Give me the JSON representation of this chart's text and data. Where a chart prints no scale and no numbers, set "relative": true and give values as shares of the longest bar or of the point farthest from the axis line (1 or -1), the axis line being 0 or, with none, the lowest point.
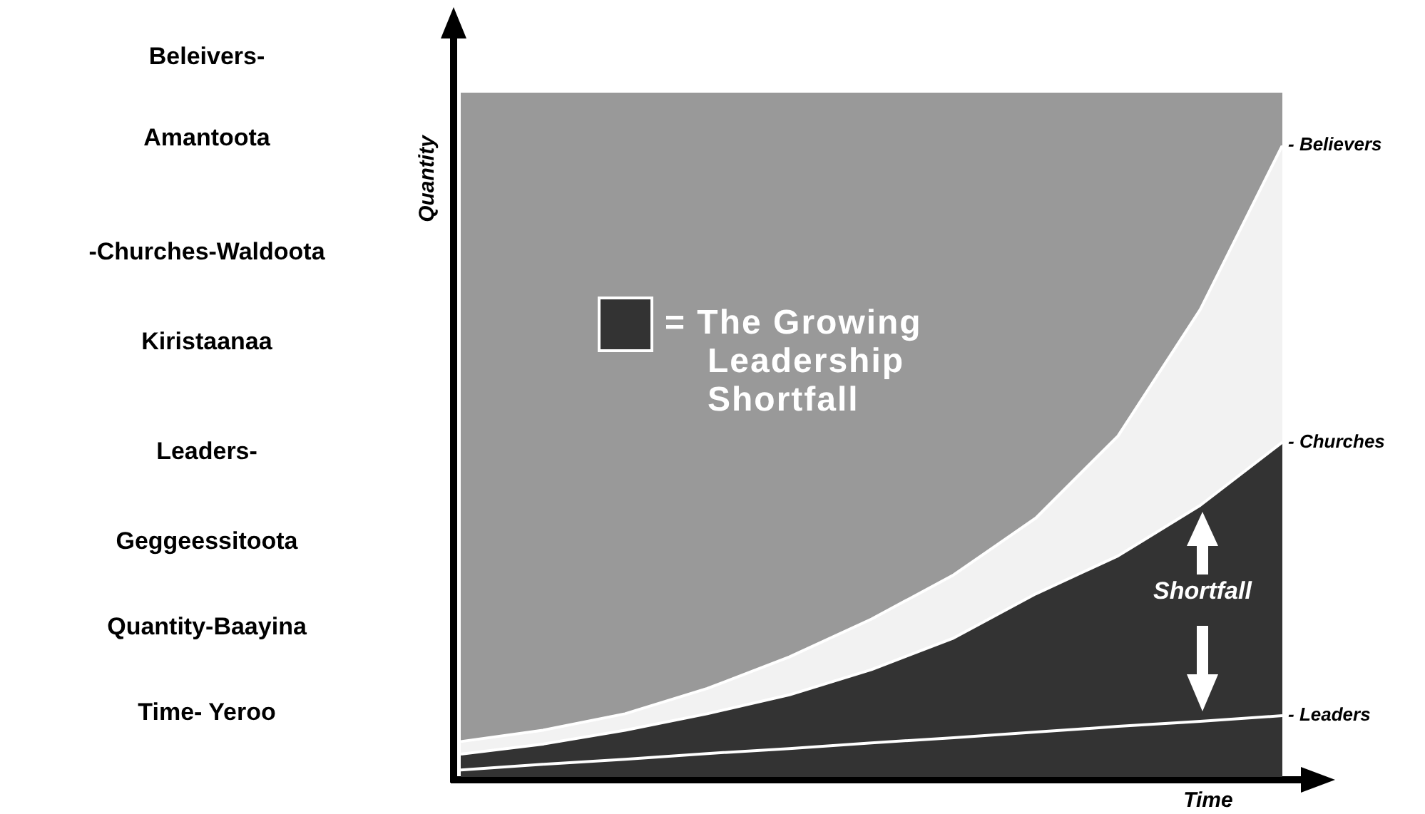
{
  "chart_data": {
    "type": "area",
    "relative": true,
    "xlabel": "Time",
    "ylabel": "Quantity",
    "categories": [
      null,
      null,
      null,
      null,
      null,
      null,
      null,
      null,
      null,
      null,
      null
    ],
    "series": [
      {
        "name": "- Believers",
        "color": "#f2f2f2",
        "values": [
          0.056,
          0.074,
          0.1,
          0.14,
          0.19,
          0.25,
          0.32,
          0.41,
          0.54,
          0.74,
          1
        ]
      },
      {
        "name": "- Churches",
        "color": "#333333",
        "values": [
          0.036,
          0.052,
          0.074,
          0.1,
          0.13,
          0.17,
          0.22,
          0.29,
          0.35,
          0.43,
          0.53
        ]
      },
      {
        "name": "- Leaders",
        "type": "line",
        "color": "#ffffff",
        "values": [
          0.011,
          0.02,
          0.028,
          0.037,
          0.045,
          0.054,
          0.062,
          0.071,
          0.08,
          0.088,
          0.097
        ]
      }
    ],
    "annotations": [
      "Beleivers-",
      "Amantoota",
      "-Churches-Waldoota",
      "Kiristaanaa",
      "Leaders-",
      "Geggeessitoota",
      "Quantity-Baayina",
      "Time- Yeroo",
      "= The Growing Leadership Shortfall",
      "Shortfall"
    ],
    "legend": false,
    "marker": "none",
    "line_style": "solid"
  }
}
